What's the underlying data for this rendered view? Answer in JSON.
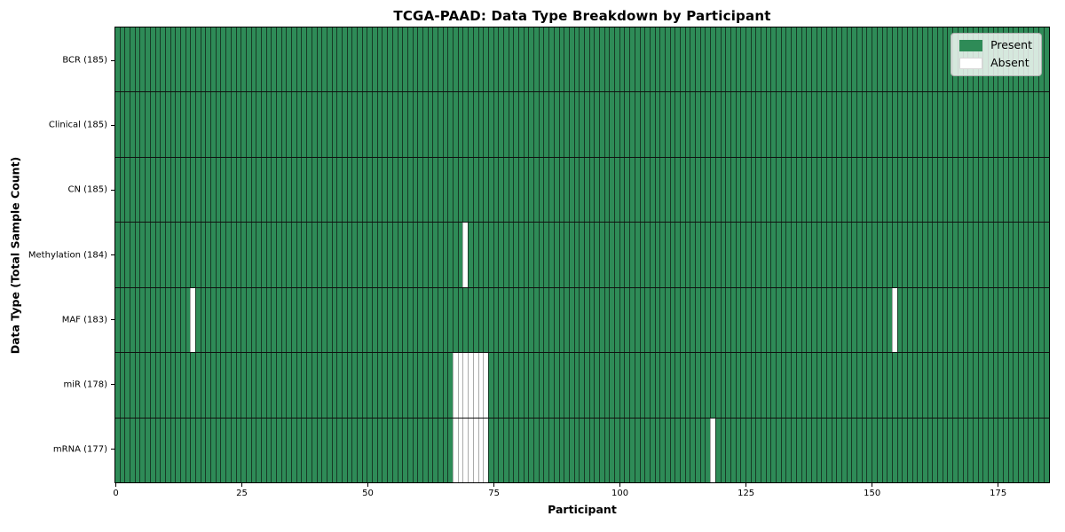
{
  "title": "TCGA-PAAD: Data Type Breakdown by Participant",
  "chart_data": {
    "type": "heatmap",
    "title": "TCGA-PAAD: Data Type Breakdown by Participant",
    "xlabel": "Participant",
    "ylabel": "Data Type (Total Sample Count)",
    "n_participants": 185,
    "x_ticks": [
      0,
      25,
      50,
      75,
      100,
      125,
      150,
      175
    ],
    "grid": "cell-borders",
    "rows": [
      {
        "name": "BCR",
        "label": "BCR (185)",
        "present_count": 185,
        "absent_participants": []
      },
      {
        "name": "Clinical",
        "label": "Clinical (185)",
        "present_count": 185,
        "absent_participants": []
      },
      {
        "name": "CN",
        "label": "CN (185)",
        "present_count": 185,
        "absent_participants": []
      },
      {
        "name": "Methylation",
        "label": "Methylation (184)",
        "present_count": 184,
        "absent_participants": [
          69
        ]
      },
      {
        "name": "MAF",
        "label": "MAF (183)",
        "present_count": 183,
        "absent_participants": [
          15,
          154
        ]
      },
      {
        "name": "miR",
        "label": "miR (178)",
        "present_count": 178,
        "absent_participants": [
          67,
          68,
          69,
          70,
          71,
          72,
          73
        ]
      },
      {
        "name": "mRNA",
        "label": "mRNA (177)",
        "present_count": 177,
        "absent_participants": [
          67,
          68,
          69,
          70,
          71,
          72,
          73,
          118
        ]
      }
    ],
    "legend": {
      "position": "upper right",
      "entries": [
        {
          "label": "Present",
          "color": "#2e8b57"
        },
        {
          "label": "Absent",
          "color": "#ffffff"
        }
      ]
    },
    "colors": {
      "present": "#2e8b57",
      "absent": "#ffffff",
      "present_cell_border": "#173a26",
      "absent_cell_border": "#ababab",
      "row_divider": "#101010",
      "frame": "#000000"
    }
  }
}
